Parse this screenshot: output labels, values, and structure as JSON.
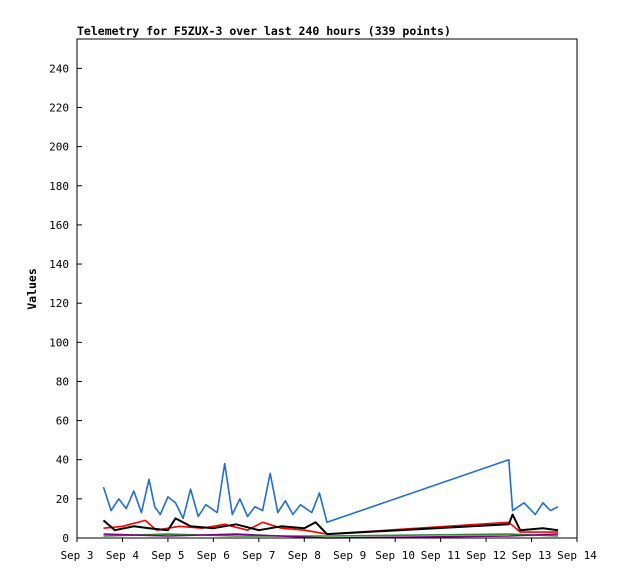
{
  "chart_data": {
    "type": "line",
    "title": "Telemetry for F5ZUX-3 over last 240 hours (339 points)",
    "xlabel": "",
    "ylabel": "Values",
    "ylim": [
      0,
      255
    ],
    "yticks": [
      0,
      20,
      40,
      60,
      80,
      100,
      120,
      140,
      160,
      180,
      200,
      220,
      240
    ],
    "xlim": [
      "2024-09-03",
      "2024-09-14"
    ],
    "xticks": [
      {
        "date": "2024-09-03",
        "label": "Sep 3"
      },
      {
        "date": "2024-09-04",
        "label": "Sep 4"
      },
      {
        "date": "2024-09-05",
        "label": "Sep 5"
      },
      {
        "date": "2024-09-06",
        "label": "Sep 6"
      },
      {
        "date": "2024-09-07",
        "label": "Sep 7"
      },
      {
        "date": "2024-09-08",
        "label": "Sep 8"
      },
      {
        "date": "2024-09-09",
        "label": "Sep 9"
      },
      {
        "date": "2024-09-10",
        "label": "Sep 10"
      },
      {
        "date": "2024-09-11",
        "label": "Sep 11"
      },
      {
        "date": "2024-09-12",
        "label": "Sep 12"
      },
      {
        "date": "2024-09-13",
        "label": "Sep 13"
      },
      {
        "date": "2024-09-14",
        "label": "Sep 14"
      }
    ],
    "grid": false,
    "legend": "none",
    "series": [
      {
        "color": "#1f6fd0",
        "points": [
          [
            "2024-09-03 14:00",
            26
          ],
          [
            "2024-09-03 18:00",
            14
          ],
          [
            "2024-09-03 22:00",
            20
          ],
          [
            "2024-09-04 02:00",
            15
          ],
          [
            "2024-09-04 06:00",
            24
          ],
          [
            "2024-09-04 10:00",
            13
          ],
          [
            "2024-09-04 14:00",
            30
          ],
          [
            "2024-09-04 17:00",
            16
          ],
          [
            "2024-09-04 20:00",
            12
          ],
          [
            "2024-09-05 00:00",
            21
          ],
          [
            "2024-09-05 04:00",
            18
          ],
          [
            "2024-09-05 08:00",
            10
          ],
          [
            "2024-09-05 12:00",
            25
          ],
          [
            "2024-09-05 16:00",
            11
          ],
          [
            "2024-09-05 20:00",
            17
          ],
          [
            "2024-09-06 02:00",
            13
          ],
          [
            "2024-09-06 06:00",
            38
          ],
          [
            "2024-09-06 10:00",
            12
          ],
          [
            "2024-09-06 14:00",
            20
          ],
          [
            "2024-09-06 18:00",
            11
          ],
          [
            "2024-09-06 22:00",
            16
          ],
          [
            "2024-09-07 02:00",
            14
          ],
          [
            "2024-09-07 06:00",
            33
          ],
          [
            "2024-09-07 10:00",
            13
          ],
          [
            "2024-09-07 14:00",
            19
          ],
          [
            "2024-09-07 18:00",
            12
          ],
          [
            "2024-09-07 22:00",
            17
          ],
          [
            "2024-09-08 04:00",
            13
          ],
          [
            "2024-09-08 08:00",
            23
          ],
          [
            "2024-09-08 12:00",
            8
          ],
          [
            "2024-09-12 12:00",
            40
          ],
          [
            "2024-09-12 14:00",
            14
          ],
          [
            "2024-09-12 20:00",
            18
          ],
          [
            "2024-09-13 02:00",
            12
          ],
          [
            "2024-09-13 06:00",
            18
          ],
          [
            "2024-09-13 10:00",
            14
          ],
          [
            "2024-09-13 14:00",
            16
          ]
        ]
      },
      {
        "color": "#ff0000",
        "points": [
          [
            "2024-09-03 14:00",
            5
          ],
          [
            "2024-09-04 00:00",
            6
          ],
          [
            "2024-09-04 12:00",
            9
          ],
          [
            "2024-09-04 18:00",
            4
          ],
          [
            "2024-09-05 06:00",
            6
          ],
          [
            "2024-09-05 18:00",
            5
          ],
          [
            "2024-09-06 06:00",
            7
          ],
          [
            "2024-09-06 18:00",
            4
          ],
          [
            "2024-09-07 02:00",
            8
          ],
          [
            "2024-09-07 12:00",
            5
          ],
          [
            "2024-09-08 00:00",
            4
          ],
          [
            "2024-09-08 12:00",
            2
          ],
          [
            "2024-09-12 12:00",
            8
          ],
          [
            "2024-09-12 18:00",
            3
          ],
          [
            "2024-09-13 14:00",
            3
          ]
        ]
      },
      {
        "color": "#000000",
        "points": [
          [
            "2024-09-03 14:00",
            9
          ],
          [
            "2024-09-03 20:00",
            4
          ],
          [
            "2024-09-04 06:00",
            6
          ],
          [
            "2024-09-04 14:00",
            5
          ],
          [
            "2024-09-05 00:00",
            4
          ],
          [
            "2024-09-05 04:00",
            10
          ],
          [
            "2024-09-05 12:00",
            6
          ],
          [
            "2024-09-06 00:00",
            5
          ],
          [
            "2024-09-06 12:00",
            7
          ],
          [
            "2024-09-07 00:00",
            4
          ],
          [
            "2024-09-07 12:00",
            6
          ],
          [
            "2024-09-08 00:00",
            5
          ],
          [
            "2024-09-08 06:00",
            8
          ],
          [
            "2024-09-08 12:00",
            2
          ],
          [
            "2024-09-12 12:00",
            7
          ],
          [
            "2024-09-12 14:00",
            12
          ],
          [
            "2024-09-12 18:00",
            4
          ],
          [
            "2024-09-13 06:00",
            5
          ],
          [
            "2024-09-13 14:00",
            4
          ]
        ]
      },
      {
        "color": "#2e8b2e",
        "points": [
          [
            "2024-09-03 14:00",
            1
          ],
          [
            "2024-09-05 00:00",
            2
          ],
          [
            "2024-09-06 12:00",
            1
          ],
          [
            "2024-09-08 12:00",
            1
          ],
          [
            "2024-09-12 12:00",
            2
          ],
          [
            "2024-09-13 14:00",
            1
          ]
        ]
      },
      {
        "color": "#800080",
        "points": [
          [
            "2024-09-03 14:00",
            2
          ],
          [
            "2024-09-05 00:00",
            1
          ],
          [
            "2024-09-06 12:00",
            2
          ],
          [
            "2024-09-08 12:00",
            0
          ],
          [
            "2024-09-12 12:00",
            1
          ],
          [
            "2024-09-13 14:00",
            2
          ]
        ]
      }
    ]
  }
}
